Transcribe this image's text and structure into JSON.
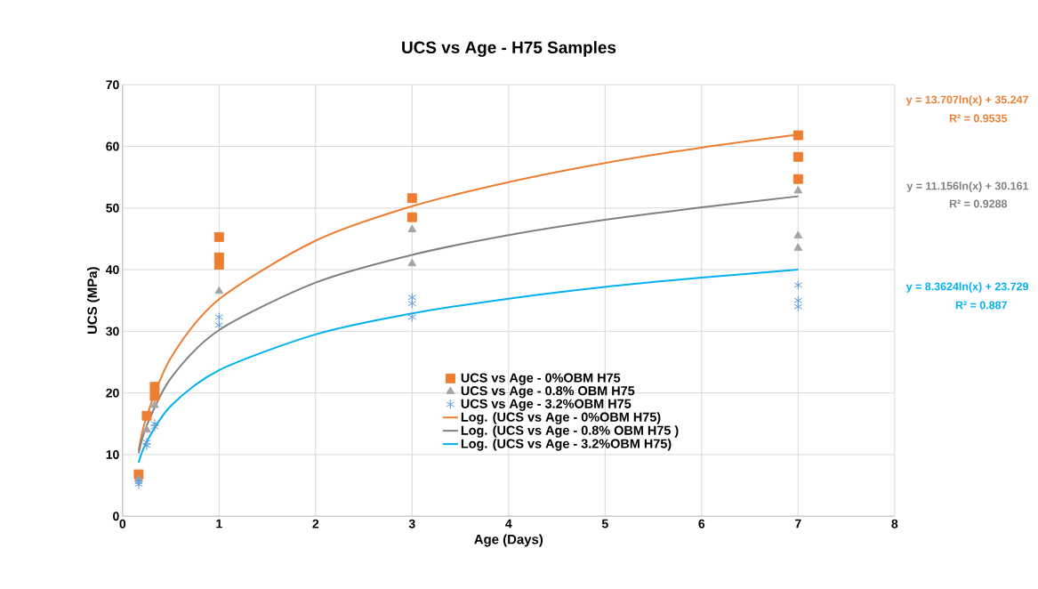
{
  "chart_data": {
    "type": "scatter",
    "title": "UCS vs Age - H75 Samples",
    "xlabel": "Age (Days)",
    "ylabel": "UCS (MPa)",
    "xlim": [
      0,
      8
    ],
    "ylim": [
      0,
      70
    ],
    "xticks": [
      0,
      1,
      2,
      3,
      4,
      5,
      6,
      7,
      8
    ],
    "yticks": [
      0,
      10,
      20,
      30,
      40,
      50,
      60,
      70
    ],
    "grid": true,
    "legend": "bottom",
    "series": [
      {
        "name": "UCS vs Age - 0%OBM H75",
        "marker": "square",
        "color": "#ed7d31",
        "x": [
          0.167,
          0.25,
          0.333,
          0.333,
          1,
          1,
          1,
          3,
          3,
          7,
          7,
          7
        ],
        "values": [
          6.8,
          16.3,
          21,
          19.5,
          45.3,
          42,
          40.8,
          51.6,
          48.5,
          61.8,
          58.3,
          54.7
        ]
      },
      {
        "name": "UCS vs Age - 0.8% OBM H75",
        "marker": "triangle",
        "color": "#a5a5a5",
        "x": [
          0.167,
          0.25,
          0.333,
          1,
          3,
          3,
          7,
          7,
          7
        ],
        "values": [
          6,
          14,
          18,
          36.5,
          46.5,
          41,
          52.8,
          45.5,
          43.5
        ]
      },
      {
        "name": "UCS vs Age - 3.2%OBM H75",
        "marker": "cross",
        "color": "#5b9bd5",
        "x": [
          0.167,
          0.167,
          0.25,
          0.25,
          0.333,
          0.333,
          1,
          1,
          3,
          3,
          3,
          7,
          7,
          7
        ],
        "values": [
          5.2,
          5.6,
          12,
          11.5,
          14.5,
          15,
          32.3,
          31,
          35.5,
          34.5,
          32.3,
          37.5,
          35,
          34
        ]
      },
      {
        "name": "Log. (UCS vs Age - 0%OBM H75)",
        "type": "line",
        "marker": "none",
        "color": "#ed7d31",
        "x": [
          0.167,
          0.25,
          0.5,
          1,
          2,
          3,
          4,
          5,
          6,
          7
        ],
        "values": [
          10.7,
          16.2,
          25.7,
          35.2,
          44.7,
          50.3,
          54.2,
          57.3,
          59.8,
          61.9
        ]
      },
      {
        "name": "Log. (UCS vs Age - 0.8% OBM H75 )",
        "type": "line",
        "marker": "none",
        "color": "#7f7f7f",
        "x": [
          0.167,
          0.25,
          0.5,
          1,
          2,
          3,
          4,
          5,
          6,
          7
        ],
        "values": [
          10.2,
          14.7,
          22.4,
          30.2,
          37.9,
          42.4,
          45.6,
          48.1,
          50.1,
          51.9
        ]
      },
      {
        "name": "Log. (UCS vs Age - 3.2%OBM H75)",
        "type": "line",
        "marker": "none",
        "color": "#00b0f0",
        "x": [
          0.167,
          0.25,
          0.5,
          1,
          2,
          3,
          4,
          5,
          6,
          7
        ],
        "values": [
          8.7,
          12.1,
          17.9,
          23.7,
          29.5,
          32.9,
          35.3,
          37.2,
          38.7,
          40.0
        ]
      }
    ],
    "annotations": [
      "y = 13.707ln(x) + 35.247",
      "R² = 0.9535",
      "y = 11.156ln(x) + 30.161",
      "R² = 0.9288",
      "y = 8.3624ln(x) + 23.729",
      "R² = 0.887"
    ]
  }
}
